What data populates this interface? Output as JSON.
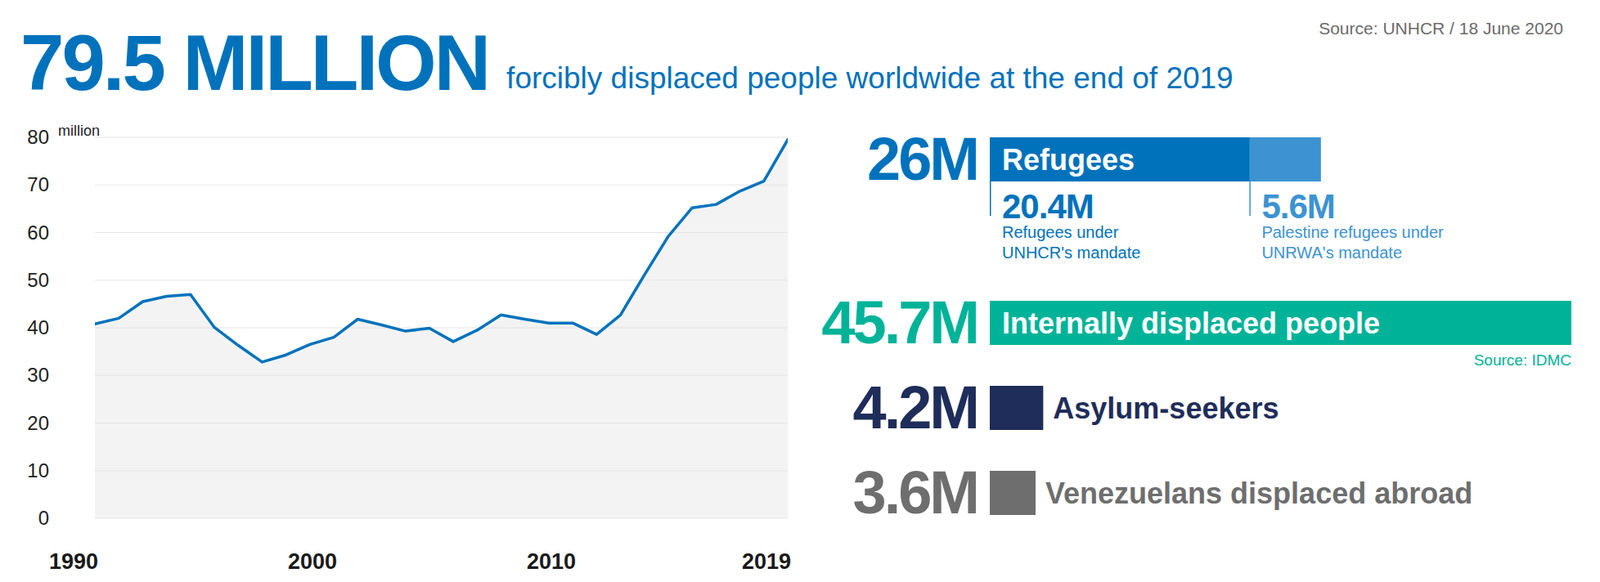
{
  "header": {
    "headline": "79.5 MILLION",
    "text": "forcibly displaced people worldwide at the end of 2019",
    "source": "Source: UNHCR / 18 June 2020"
  },
  "chart_data": [
    {
      "type": "area",
      "ylabel": "million",
      "x": [
        1990,
        1991,
        1992,
        1993,
        1994,
        1995,
        1996,
        1997,
        1998,
        1999,
        2000,
        2001,
        2002,
        2003,
        2004,
        2005,
        2006,
        2007,
        2008,
        2009,
        2010,
        2011,
        2012,
        2013,
        2014,
        2015,
        2016,
        2017,
        2018,
        2019
      ],
      "values": [
        40.8,
        42,
        45.5,
        46.6,
        47,
        40.1,
        36.3,
        32.8,
        34.3,
        36.5,
        38,
        41.8,
        40.6,
        39.3,
        39.9,
        37.1,
        39.5,
        42.7,
        41.8,
        41,
        41,
        38.6,
        42.7,
        51.1,
        59.2,
        65.2,
        65.9,
        68.7,
        70.8,
        79.5
      ],
      "color": "#0072bc",
      "xlim": [
        1990,
        2019
      ],
      "xticks": [
        1990,
        2000,
        2010,
        2019
      ],
      "ylim": [
        0,
        80
      ],
      "yticks": [
        0,
        10,
        20,
        30,
        40,
        50,
        60,
        70,
        80
      ],
      "grid": true
    },
    {
      "type": "bar",
      "orientation": "horizontal",
      "stacked": true,
      "tick_labels": false,
      "categories": [
        "Refugees",
        "Internally displaced people",
        "Asylum-seekers",
        "Venezuelans displaced abroad"
      ],
      "values": [
        26,
        45.7,
        4.2,
        3.6
      ],
      "value_labels": [
        "26M",
        "45.7M",
        "4.2M",
        "3.6M"
      ],
      "colors": [
        "#0072bc",
        "#00b398",
        "#1f2d5a",
        "#6e6e6e"
      ],
      "xlim": [
        0,
        45.7
      ],
      "breakdown": [
        [
          {
            "name": "Refugees under UNHCR's mandate",
            "value": 20.4,
            "value_label": "20.4M",
            "color": "#0072bc"
          },
          {
            "name": "Palestine refugees under UNRWA's mandate",
            "value": 5.6,
            "value_label": "5.6M",
            "color": "#3d93d1"
          }
        ],
        null,
        null,
        null
      ],
      "sources": [
        null,
        "Source: IDMC",
        null,
        null
      ]
    }
  ]
}
